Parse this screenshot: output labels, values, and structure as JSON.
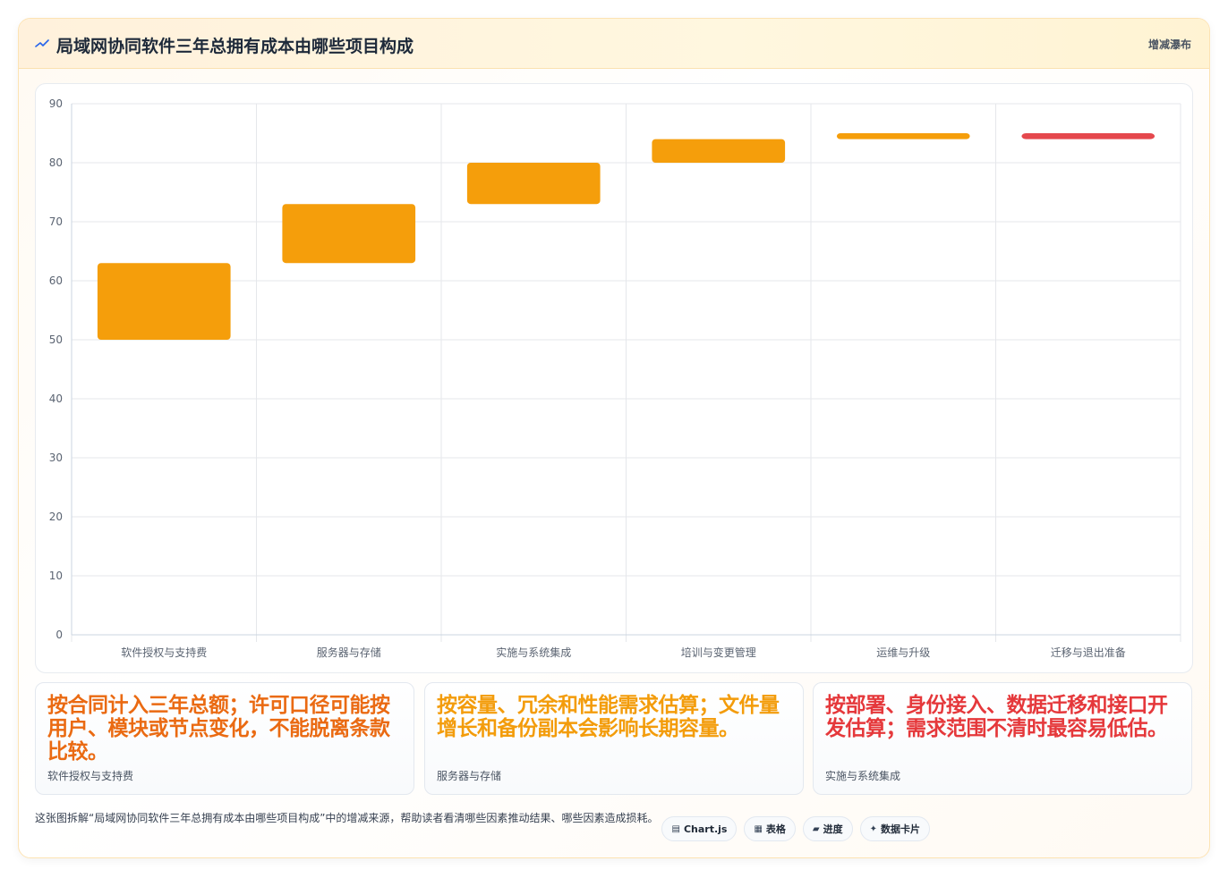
{
  "header": {
    "title": "局域网协同软件三年总拥有成本由哪些项目构成",
    "tag": "增减瀑布"
  },
  "colors": {
    "increase": "#f59e0b",
    "total": "#e5484d"
  },
  "chart_data": {
    "type": "bar",
    "subtype": "waterfall",
    "categories": [
      "软件授权与支持费",
      "服务器与存储",
      "实施与系统集成",
      "培训与变更管理",
      "运维与升级",
      "迁移与退出准备"
    ],
    "ranges": [
      [
        50,
        63
      ],
      [
        63,
        73
      ],
      [
        73,
        80
      ],
      [
        80,
        84
      ],
      [
        84,
        85
      ],
      [
        84,
        85
      ]
    ],
    "bar_kinds": [
      "increase",
      "increase",
      "increase",
      "increase",
      "increase",
      "total"
    ],
    "ylim": [
      0,
      90
    ],
    "yticks": [
      0,
      10,
      20,
      30,
      40,
      50,
      60,
      70,
      80,
      90
    ],
    "grid": true,
    "legend": "none"
  },
  "notes": [
    {
      "text": "按合同计入三年总额；许可口径可能按用户、模块或节点变化，不能脱离条款比较。",
      "label": "软件授权与支持费",
      "color": "#ea6a12"
    },
    {
      "text": "按容量、冗余和性能需求估算；文件量增长和备份副本会影响长期容量。",
      "label": "服务器与存储",
      "color": "#f39c0b"
    },
    {
      "text": "按部署、身份接入、数据迁移和接口开发估算；需求范围不清时最容易低估。",
      "label": "实施与系统集成",
      "color": "#e5383b"
    }
  ],
  "footer": {
    "description": "这张图拆解“局域网协同软件三年总拥有成本由哪些项目构成”中的增减来源，帮助读者看清哪些因素推动结果、哪些因素造成损耗。",
    "badges": [
      {
        "icon": "chart-icon",
        "glyph": "▤",
        "label": "Chart.js"
      },
      {
        "icon": "table-icon",
        "glyph": "▦",
        "label": "表格"
      },
      {
        "icon": "progress-icon",
        "glyph": "▰",
        "label": "进度"
      },
      {
        "icon": "data-card-icon",
        "glyph": "✦",
        "label": "数据卡片"
      }
    ]
  }
}
